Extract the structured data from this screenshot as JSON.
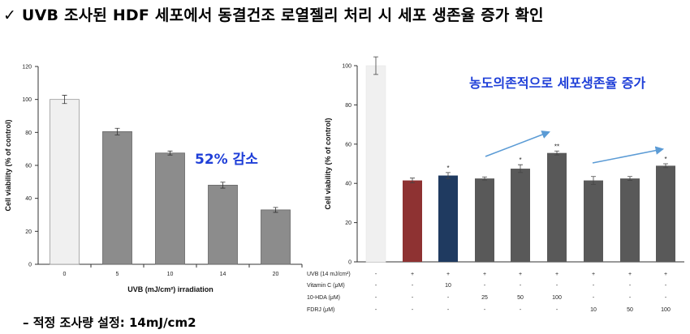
{
  "title": "✓ UVB 조사된 HDF 세포에서 동결건조 로열젤리 처리 시 세포 생존율 증가 확인",
  "footnote": "–  적정 조사량 설정: 14mJ/cm2",
  "colors": {
    "annotation": "#1f3fd8",
    "arrow": "#5b9bd5",
    "control_bar": "#f0f0f0",
    "grey_bar": "#8c8c8c",
    "red_bar": "#8e3232",
    "navy_bar": "#1f3a60",
    "dark_bar": "#595959"
  },
  "chart_data": [
    {
      "type": "bar",
      "categories": [
        "0",
        "5",
        "10",
        "14",
        "20"
      ],
      "values": [
        100,
        80.5,
        67.5,
        48,
        33
      ],
      "errors": [
        2.5,
        2,
        1.2,
        1.8,
        1.5
      ],
      "ylim": [
        0,
        120
      ],
      "yticks": [
        "0",
        "20",
        "40",
        "60",
        "80",
        "100",
        "120"
      ],
      "ylabel": "Cell viability (% of control)",
      "xlabel": "UVB (mJ/cm²) irradiation",
      "annotation": "52% 감소"
    },
    {
      "type": "bar",
      "values": [
        100,
        41.5,
        44,
        42.5,
        47.5,
        55.5,
        41.5,
        42.5,
        49
      ],
      "errors": [
        4.5,
        1.2,
        1.5,
        0.8,
        2,
        1,
        2,
        1,
        1
      ],
      "significance": [
        "",
        "",
        "*",
        "",
        "*",
        "**",
        "",
        "",
        "*"
      ],
      "ylim": [
        0,
        100
      ],
      "yticks": [
        "0",
        "20",
        "40",
        "60",
        "80",
        "100"
      ],
      "ylabel": "Cell viability (% of control)",
      "annotation": "농도의존적으로 세포생존율 증가",
      "treatment_table": [
        {
          "label": "UVB (14 mJ/cm²)",
          "values": [
            "-",
            "+",
            "+",
            "+",
            "+",
            "+",
            "+",
            "+",
            "+"
          ]
        },
        {
          "label": "Vitamin C (μM)",
          "values": [
            "-",
            "-",
            "10",
            "-",
            "-",
            "-",
            "-",
            "-",
            "-"
          ]
        },
        {
          "label": "10-HDA (μM)",
          "values": [
            "-",
            "-",
            "-",
            "25",
            "50",
            "100",
            "-",
            "-",
            "-"
          ]
        },
        {
          "label": "FDRJ (μM)",
          "values": [
            "-",
            "-",
            "-",
            "-",
            "-",
            "-",
            "10",
            "50",
            "100"
          ]
        }
      ]
    }
  ]
}
